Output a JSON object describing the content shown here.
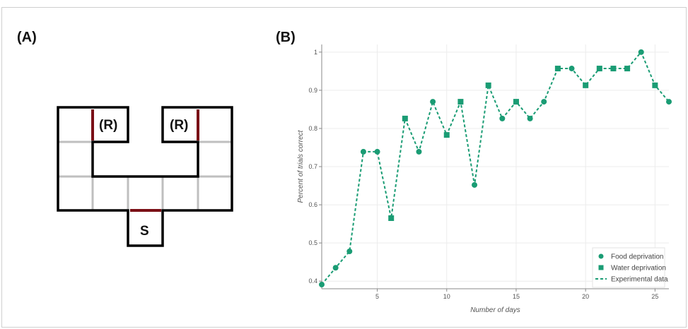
{
  "panel_a": {
    "label": "(A)",
    "reward_left": "(R)",
    "reward_right": "(R)",
    "start": "S"
  },
  "panel_b": {
    "label": "(B)"
  },
  "colors": {
    "series": "#1a9c74",
    "maze_wall": "#000000",
    "maze_door": "#7a0f16",
    "maze_grid": "#bfbfbf"
  },
  "chart_data": {
    "type": "line",
    "title": "",
    "xlabel": "Number of days",
    "ylabel": "Percent of trials correct",
    "xlim": [
      1,
      26
    ],
    "ylim": [
      0.38,
      1.02
    ],
    "x_ticks": [
      5,
      10,
      15,
      20,
      25
    ],
    "y_ticks": [
      0.4,
      0.5,
      0.6,
      0.7,
      0.8,
      0.9,
      1
    ],
    "grid": true,
    "legend_position": "bottom-right",
    "series": [
      {
        "name": "Food deprivation",
        "kind": "marker-circle",
        "x": [
          1,
          2,
          3,
          4,
          5,
          8,
          9,
          12,
          14,
          16,
          17,
          19,
          24,
          26
        ],
        "y": [
          0.391,
          0.435,
          0.478,
          0.739,
          0.739,
          0.739,
          0.87,
          0.652,
          0.826,
          0.826,
          0.87,
          0.957,
          1.0,
          0.87
        ]
      },
      {
        "name": "Water deprivation",
        "kind": "marker-square",
        "x": [
          6,
          7,
          10,
          11,
          13,
          15,
          18,
          20,
          21,
          22,
          23,
          25
        ],
        "y": [
          0.565,
          0.826,
          0.783,
          0.87,
          0.913,
          0.87,
          0.957,
          0.913,
          0.957,
          0.957,
          0.957,
          0.913
        ]
      },
      {
        "name": "Experimental data",
        "kind": "dashed-line",
        "x": [
          1,
          2,
          3,
          4,
          5,
          6,
          7,
          8,
          9,
          10,
          11,
          12,
          13,
          14,
          15,
          16,
          17,
          18,
          19,
          20,
          21,
          22,
          23,
          24,
          25,
          26
        ],
        "y": [
          0.391,
          0.435,
          0.478,
          0.739,
          0.739,
          0.565,
          0.826,
          0.739,
          0.87,
          0.783,
          0.87,
          0.652,
          0.913,
          0.826,
          0.87,
          0.826,
          0.87,
          0.957,
          0.957,
          0.913,
          0.957,
          0.957,
          0.957,
          1.0,
          0.913,
          0.87
        ]
      }
    ]
  }
}
